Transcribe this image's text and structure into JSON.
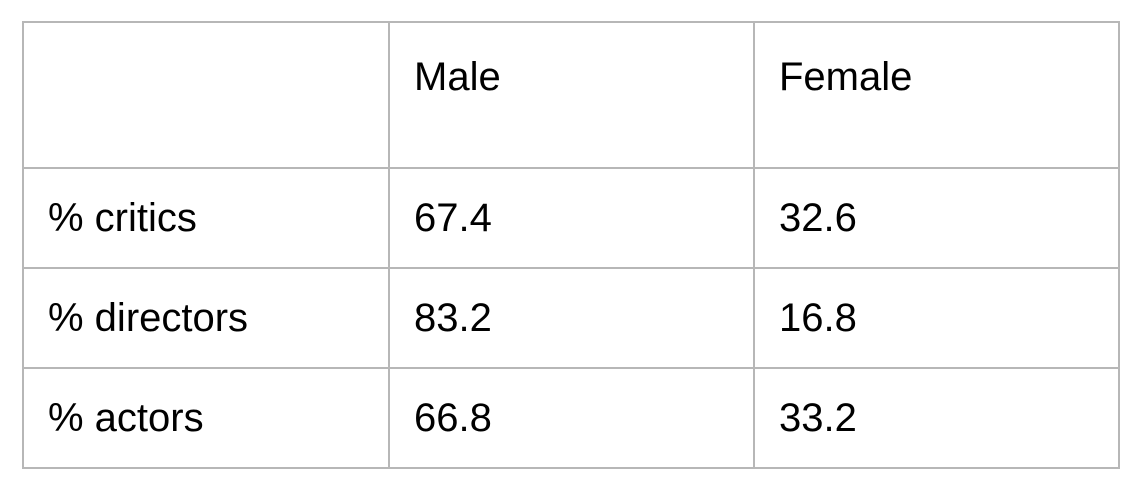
{
  "table": {
    "columns": [
      "",
      "Male",
      "Female"
    ],
    "rows": [
      [
        "% critics",
        "67.4",
        "32.6"
      ],
      [
        "% directors",
        "83.2",
        "16.8"
      ],
      [
        "% actors",
        "66.8",
        "33.2"
      ]
    ]
  },
  "colors": {
    "border": "#b7b7b7",
    "text": "#000000",
    "background": "#ffffff"
  }
}
